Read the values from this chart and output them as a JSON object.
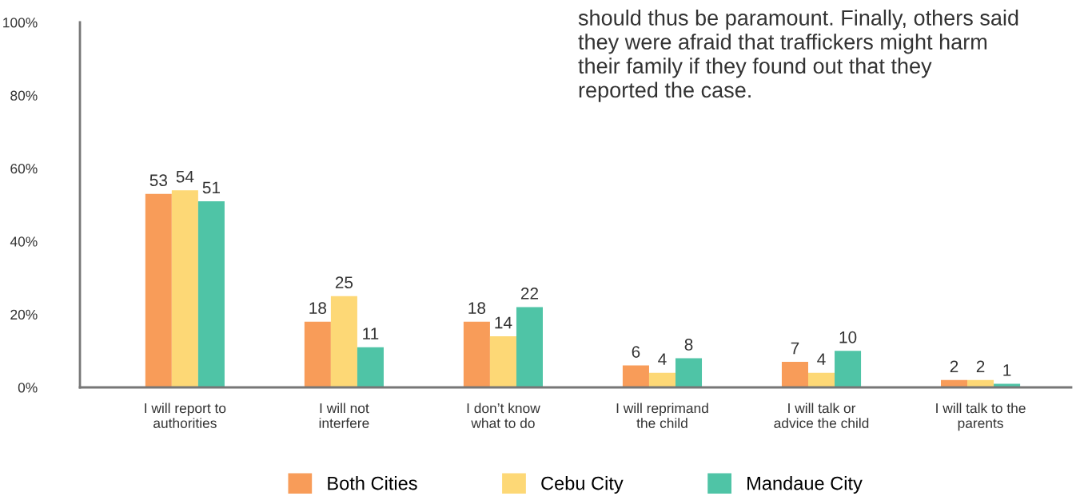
{
  "chart_data": {
    "type": "bar",
    "categories": [
      "I will report to\nauthorities",
      "I will not\ninterfere",
      "I don’t know\nwhat to do",
      "I will reprimand\nthe child",
      "I will talk or\nadvice the child",
      "I will talk to the\nparents"
    ],
    "series": [
      {
        "name": "Both Cities",
        "color": "#f89c59",
        "values": [
          53,
          18,
          18,
          6,
          7,
          2
        ]
      },
      {
        "name": "Cebu City",
        "color": "#fdd876",
        "values": [
          54,
          25,
          14,
          4,
          4,
          2
        ]
      },
      {
        "name": "Mandaue City",
        "color": "#4fc4a6",
        "values": [
          51,
          11,
          22,
          8,
          10,
          1
        ]
      }
    ],
    "ylim": [
      0,
      100
    ],
    "yticks": [
      {
        "value": 0,
        "label": "0%"
      },
      {
        "value": 20,
        "label": "20%"
      },
      {
        "value": 40,
        "label": "40%"
      },
      {
        "value": 60,
        "label": "60%"
      },
      {
        "value": 80,
        "label": "80%"
      },
      {
        "value": 100,
        "label": "100%"
      }
    ],
    "data_labels": true,
    "grid": false,
    "legend": "bottom",
    "annotations": [
      "should thus be paramount. Finally, others said\nthey were afraid that traffickers might harm\ntheir family if they found out that they\nreported the case."
    ]
  }
}
